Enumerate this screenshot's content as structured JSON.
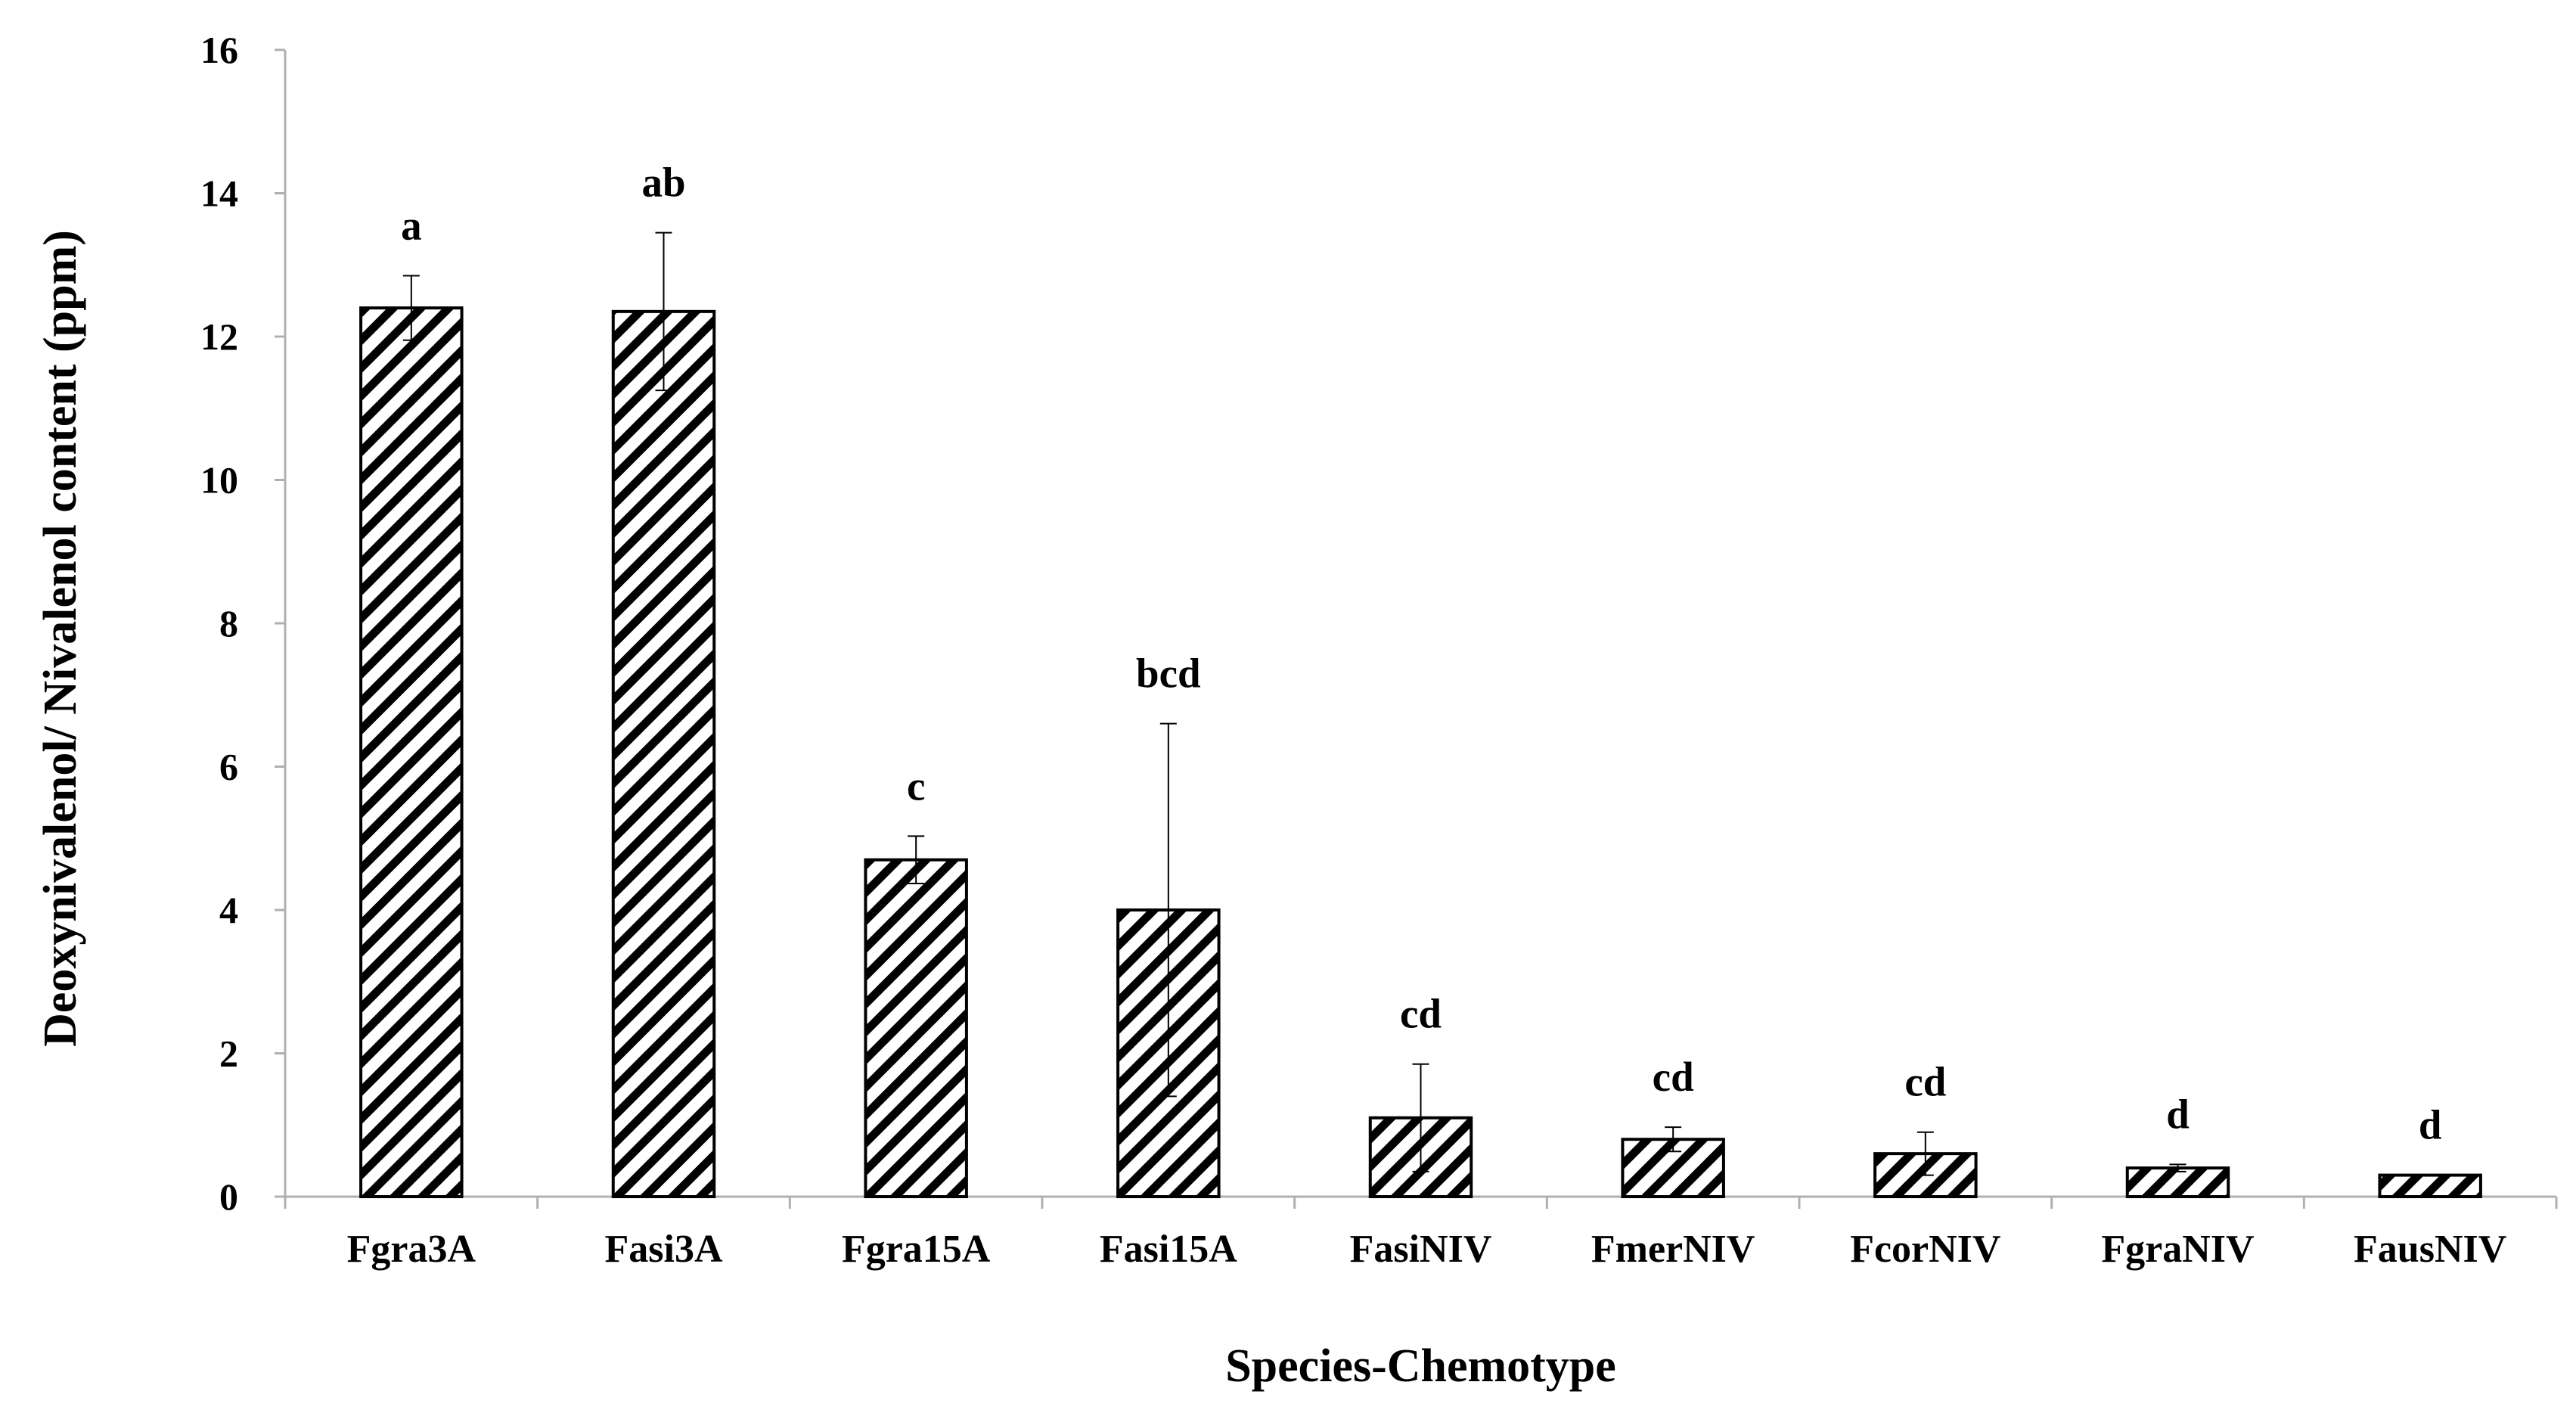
{
  "chart_data": {
    "type": "bar",
    "title": "",
    "xlabel": "Species-Chemotype",
    "ylabel": "Deoxynivalenol/ Nivalenol content (ppm)",
    "ylim": [
      0,
      16
    ],
    "yticks": [
      0,
      2,
      4,
      6,
      8,
      10,
      12,
      14,
      16
    ],
    "grid": false,
    "legend": "none",
    "bar_fill": "diagonal-hatch",
    "bar_colors": {
      "stroke": "#000000",
      "fill": "#ffffff"
    },
    "categories": [
      "Fgra3A",
      "Fasi3A",
      "Fgra15A",
      "Fasi15A",
      "FasiNIV",
      "FmerNIV",
      "FcorNIV",
      "FgraNIV",
      "FausNIV"
    ],
    "values": [
      12.4,
      12.35,
      4.7,
      4.0,
      1.1,
      0.8,
      0.6,
      0.4,
      0.3
    ],
    "error_upper": [
      12.85,
      13.45,
      5.03,
      6.6,
      1.85,
      0.97,
      0.9,
      0.45,
      0.3
    ],
    "error_lower": [
      11.95,
      11.25,
      4.37,
      1.4,
      0.35,
      0.63,
      0.3,
      0.35,
      0.3
    ],
    "group_labels": [
      "a",
      "ab",
      "c",
      "bcd",
      "cd",
      "cd",
      "cd",
      "d",
      "d"
    ]
  }
}
